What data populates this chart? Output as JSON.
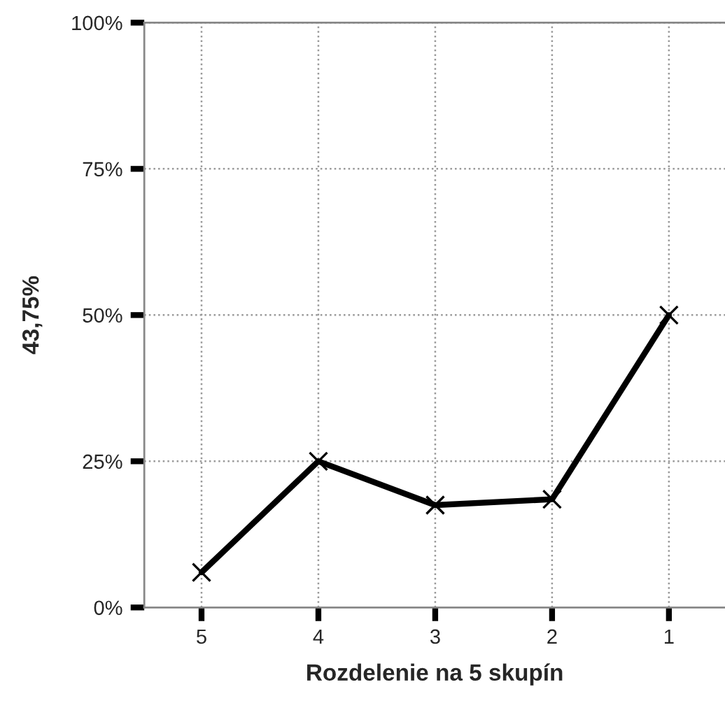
{
  "chart_data": {
    "type": "line",
    "xlabel": "Rozdelenie na 5 skupín",
    "ylabel": "43,75%",
    "categories": [
      "5",
      "4",
      "3",
      "2",
      "1"
    ],
    "series": [
      {
        "color": "#000000",
        "values": [
          6,
          25,
          17.5,
          18.5,
          50
        ]
      }
    ],
    "ylim": [
      0,
      100
    ],
    "yticks": [
      {
        "value": 0,
        "label": "0%"
      },
      {
        "value": 25,
        "label": "25%"
      },
      {
        "value": 50,
        "label": "50%"
      },
      {
        "value": 75,
        "label": "75%"
      },
      {
        "value": 100,
        "label": "100%"
      }
    ],
    "grid": true,
    "marker": "cross",
    "line_style": "solid"
  }
}
